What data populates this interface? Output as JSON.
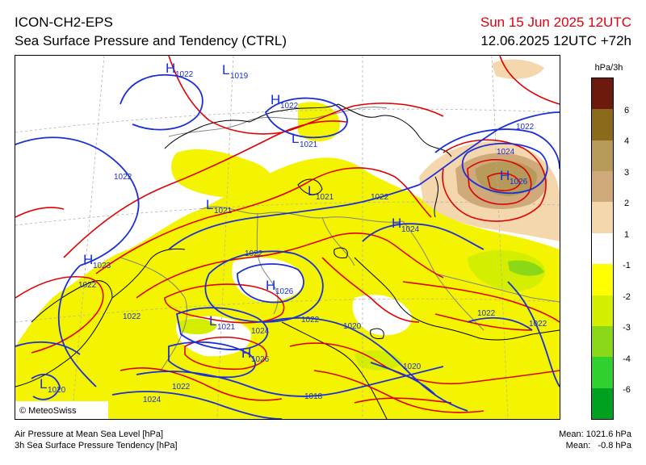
{
  "header": {
    "model": "ICON-CH2-EPS",
    "product": "Sea Surface Pressure and Tendency (CTRL)",
    "valid_time": "Sun 15 Jun 2025 12UTC",
    "run_info": "12.06.2025 12UTC +72h"
  },
  "legend": {
    "unit": "hPa/3h",
    "ticks": [
      "6",
      "4",
      "3",
      "2",
      "1",
      "-1",
      "-2",
      "-3",
      "-4",
      "-6"
    ],
    "colors": [
      "#6b1a0d",
      "#8b6a1c",
      "#b59a5a",
      "#cfa97a",
      "#f5d7ae",
      "#ffffff",
      "#ffff00",
      "#d4ee00",
      "#8ad818",
      "#2fd02f",
      "#00a020"
    ]
  },
  "map": {
    "copyright": "© MeteoSwiss",
    "colors": {
      "isobar": "#1b2fd6",
      "tendency": "#e00000",
      "fall": "#f4f400",
      "rise": "#e0c097",
      "border": "#808080",
      "coast": "#000000"
    },
    "pressure_centers": [
      {
        "type": "H",
        "value": "1022"
      },
      {
        "type": "L",
        "value": "1019"
      },
      {
        "type": "H",
        "value": "1022"
      },
      {
        "type": "L",
        "value": "1021"
      },
      {
        "type": "L",
        "value": "1021"
      },
      {
        "type": "L",
        "value": "1021"
      },
      {
        "type": "H",
        "value": "1024"
      },
      {
        "type": "H",
        "value": "1026"
      },
      {
        "type": "H",
        "value": "1023"
      },
      {
        "type": "H",
        "value": "1026"
      },
      {
        "type": "L",
        "value": "1021"
      },
      {
        "type": "H",
        "value": "1026"
      },
      {
        "type": "L",
        "value": "1020"
      }
    ],
    "isobar_labels": [
      "1022",
      "1022",
      "1024",
      "1022",
      "1022",
      "1022",
      "1022",
      "1024",
      "1022",
      "1020",
      "1020",
      "1018",
      "1024",
      "1022",
      "1022",
      "1022"
    ]
  },
  "footer": {
    "line1": "Air Pressure at Mean Sea Level [hPa]",
    "line2": "3h Sea Surface Pressure Tendency [hPa]",
    "mean1": "Mean: 1021.6 hPa",
    "mean2": "Mean:   -0.8 hPa"
  }
}
